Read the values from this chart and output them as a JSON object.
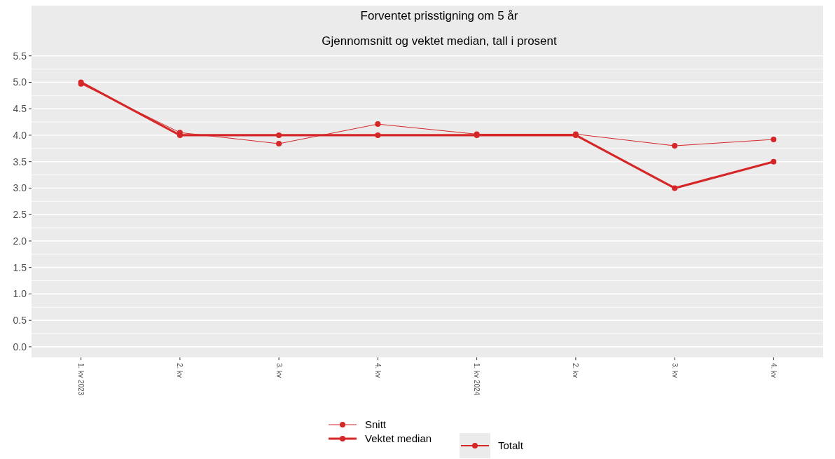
{
  "chart_data": {
    "type": "line",
    "title": "Forventet prisstigning om 5 år",
    "subtitle": "Gjennomsnitt og vektet median, tall i prosent",
    "categories": [
      "1. kv 2023",
      "2. kv",
      "3. kv",
      "4. kv",
      "1. kv 2024",
      "2. kv",
      "3. kv",
      "4. kv"
    ],
    "series": [
      {
        "name": "Snitt",
        "color": "#d62728",
        "values": [
          4.97,
          4.05,
          3.84,
          4.21,
          4.02,
          4.02,
          3.8,
          3.92
        ]
      },
      {
        "name": "Vektet median",
        "color": "#d62728",
        "values": [
          5.0,
          4.0,
          4.0,
          4.0,
          4.0,
          4.0,
          3.0,
          3.5
        ]
      }
    ],
    "annotations": [
      "Totalt"
    ],
    "ylim": [
      -0.2,
      6.45
    ],
    "yticks": [
      {
        "value": 0,
        "label": "0.0"
      },
      {
        "value": 0.5,
        "label": "0.5"
      },
      {
        "value": 1,
        "label": "1.0"
      },
      {
        "value": 1.5,
        "label": "1.5"
      },
      {
        "value": 2,
        "label": "2.0"
      },
      {
        "value": 2.5,
        "label": "2.5"
      },
      {
        "value": 3,
        "label": "3.0"
      },
      {
        "value": 3.5,
        "label": "3.5"
      },
      {
        "value": 4,
        "label": "4.0"
      },
      {
        "value": 4.5,
        "label": "4.5"
      },
      {
        "value": 5,
        "label": "5.0"
      },
      {
        "value": 5.5,
        "label": "5.5"
      }
    ],
    "grid": "y",
    "legend": "bottom",
    "marker": "circle",
    "line_style": "solid"
  }
}
